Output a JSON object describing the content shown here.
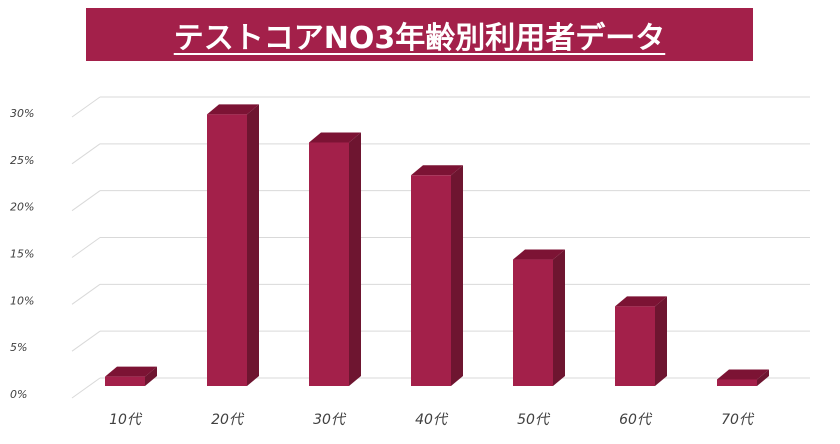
{
  "title": "テストコアNO3年齢別利用者データ",
  "colors": {
    "banner": "#A3204A",
    "bar_front": "#A3204A",
    "bar_top": "#7C1334",
    "bar_side": "#6E1530",
    "grid": "#D9D9D9"
  },
  "chart_data": {
    "type": "bar",
    "title": "テストコアNO3年齢別利用者データ",
    "xlabel": "",
    "ylabel": "",
    "categories": [
      "10代",
      "20代",
      "30代",
      "40代",
      "50代",
      "60代",
      "70代"
    ],
    "values": [
      1,
      29,
      26,
      22.5,
      13.5,
      8.5,
      0.7
    ],
    "y_unit": "%",
    "ylim": [
      0,
      30
    ],
    "yticks": [
      0,
      5,
      10,
      15,
      20,
      25,
      30
    ],
    "ytick_labels": [
      "0%",
      "5%",
      "10%",
      "15%",
      "20%",
      "25%",
      "30%"
    ],
    "grid": true,
    "legend": "none",
    "style": "3d"
  }
}
